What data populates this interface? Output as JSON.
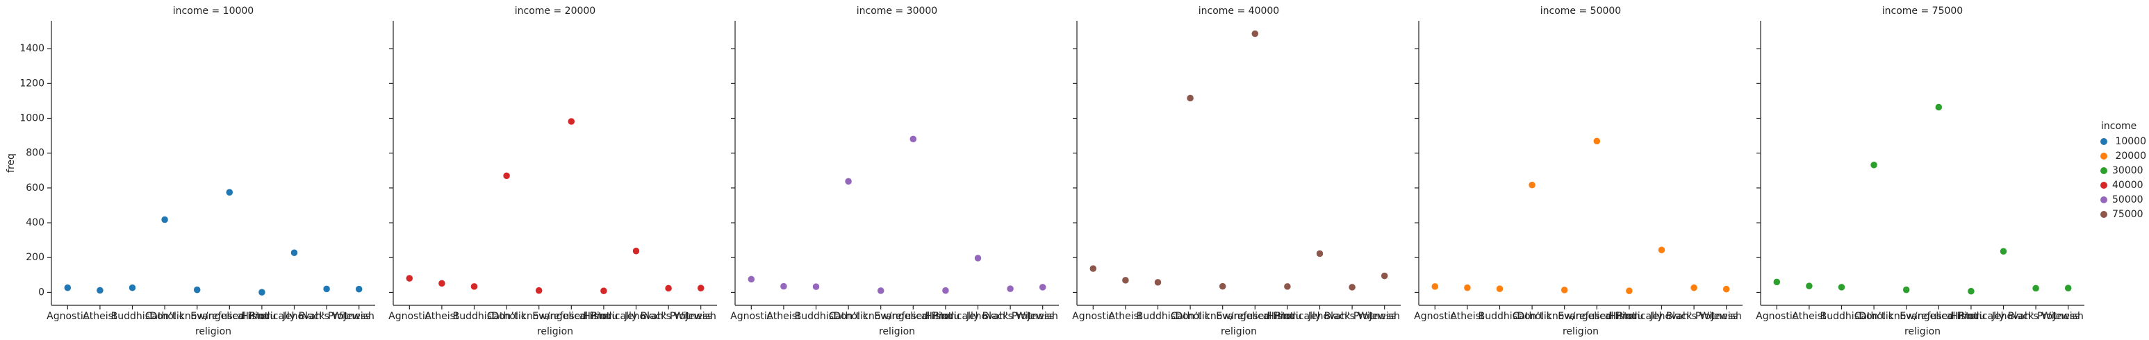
{
  "chart_data": [
    {
      "type": "strip",
      "title": "income =  10000",
      "categories": [
        "Agnostic",
        "Atheist",
        "Buddhist",
        "Catholic",
        "Don’t know/refused",
        "Evangelical Prot",
        "Hindu",
        "Historically Black Prot",
        "Jehovah's Witness",
        "Jewish"
      ],
      "values": [
        27,
        12,
        27,
        418,
        15,
        575,
        1,
        228,
        20,
        19
      ],
      "color": "#1f77b4",
      "xlabel": "religion",
      "ylabel": "freq",
      "ylim": [
        -74,
        1560
      ],
      "yticks": [
        0,
        200,
        400,
        600,
        800,
        1000,
        1200,
        1400
      ]
    },
    {
      "type": "strip",
      "title": "income =  20000",
      "categories": [
        "Agnostic",
        "Atheist",
        "Buddhist",
        "Catholic",
        "Don’t know/refused",
        "Evangelical Prot",
        "Hindu",
        "Historically Black Prot",
        "Jehovah's Witness",
        "Jewish"
      ],
      "values": [
        81,
        52,
        34,
        670,
        11,
        982,
        9,
        238,
        24,
        25
      ],
      "color": "#d62728",
      "xlabel": "religion",
      "ylim": [
        -74,
        1560
      ],
      "yticks": [
        0,
        200,
        400,
        600,
        800,
        1000,
        1200,
        1400
      ]
    },
    {
      "type": "strip",
      "title": "income = 30000",
      "categories": [
        "Agnostic",
        "Atheist",
        "Buddhist",
        "Catholic",
        "Don’t know/refused",
        "Evangelical Prot",
        "Hindu",
        "Historically Black Prot",
        "Jehovah's Witness",
        "Jewish"
      ],
      "values": [
        76,
        35,
        33,
        638,
        10,
        881,
        11,
        197,
        21,
        30
      ],
      "color": "#9467bd",
      "xlabel": "religion",
      "ylim": [
        -74,
        1560
      ],
      "yticks": [
        0,
        200,
        400,
        600,
        800,
        1000,
        1200,
        1400
      ]
    },
    {
      "type": "strip",
      "title": "income = 40000",
      "categories": [
        "Agnostic",
        "Atheist",
        "Buddhist",
        "Catholic",
        "Don’t know/refused",
        "Evangelical Prot",
        "Hindu",
        "Historically Black Prot",
        "Jehovah's Witness",
        "Jewish"
      ],
      "values": [
        137,
        70,
        58,
        1116,
        35,
        1486,
        34,
        223,
        30,
        95
      ],
      "color": "#8c564b",
      "xlabel": "religion",
      "ylim": [
        -74,
        1560
      ],
      "yticks": [
        0,
        200,
        400,
        600,
        800,
        1000,
        1200,
        1400
      ]
    },
    {
      "type": "strip",
      "title": "income = 50000",
      "categories": [
        "Agnostic",
        "Atheist",
        "Buddhist",
        "Catholic",
        "Don’t know/refused",
        "Evangelical Prot",
        "Hindu",
        "Historically Black Prot",
        "Jehovah's Witness",
        "Jewish"
      ],
      "values": [
        34,
        27,
        21,
        617,
        14,
        869,
        9,
        244,
        27,
        19
      ],
      "color": "#ff7f0e",
      "xlabel": "religion",
      "ylim": [
        -74,
        1560
      ],
      "yticks": [
        0,
        200,
        400,
        600,
        800,
        1000,
        1200,
        1400
      ]
    },
    {
      "type": "strip",
      "title": "income = 75000",
      "categories": [
        "Agnostic",
        "Atheist",
        "Buddhist",
        "Catholic",
        "Don’t know/refused",
        "Evangelical Prot",
        "Hindu",
        "Historically Black Prot",
        "Jehovah's Witness",
        "Jewish"
      ],
      "values": [
        60,
        37,
        30,
        732,
        15,
        1064,
        7,
        236,
        24,
        25
      ],
      "color": "#2ca02c",
      "xlabel": "religion",
      "ylim": [
        -74,
        1560
      ],
      "yticks": [
        0,
        200,
        400,
        600,
        800,
        1000,
        1200,
        1400
      ]
    }
  ],
  "legend": {
    "title": "income",
    "entries": [
      {
        "label": " 10000",
        "color": "#1f77b4"
      },
      {
        "label": " 20000",
        "color": "#ff7f0e"
      },
      {
        "label": "30000",
        "color": "#2ca02c"
      },
      {
        "label": "40000",
        "color": "#d62728"
      },
      {
        "label": "50000",
        "color": "#9467bd"
      },
      {
        "label": "75000",
        "color": "#8c564b"
      }
    ]
  }
}
